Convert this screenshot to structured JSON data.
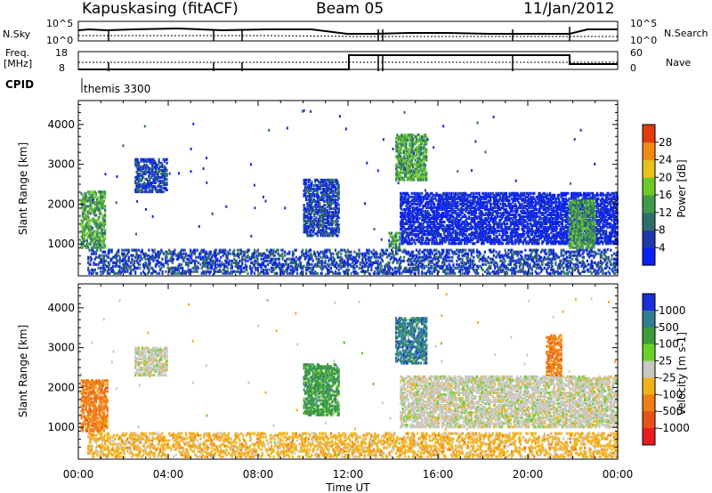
{
  "header": {
    "station": "Kapuskasing (fitACF)",
    "beam": "Beam 05",
    "date": "11/Jan/2012"
  },
  "strip_panels": {
    "nsky_label": "N.Sky",
    "nsky_ticks": [
      "10^5",
      "10^0"
    ],
    "nsearch_label": "N.Search",
    "nsearch_ticks": [
      "10^5",
      "10^0"
    ],
    "freq_label_line1": "Freq.",
    "freq_label_line2": "[MHz]",
    "freq_ticks": [
      "18",
      "8"
    ],
    "nave_label": "Nave",
    "nave_ticks": [
      "60",
      "0"
    ],
    "cpid_label": "CPID",
    "cpid_value": "themis 3300"
  },
  "chart_data": [
    {
      "type": "heatmap",
      "name": "power",
      "ylabel": "Slant Range [km]",
      "yticks": [
        "1000",
        "2000",
        "3000",
        "4000"
      ],
      "ylim": [
        200,
        4600
      ],
      "xlim_hours": [
        0,
        24
      ],
      "colorbar_label": "Power [dB]",
      "colorbar_ticks": [
        "4",
        "8",
        "12",
        "16",
        "20",
        "24",
        "28"
      ],
      "colorbar_colors": [
        "#0a22f5",
        "#1d3aa8",
        "#2f6f6a",
        "#3f9a49",
        "#6cc92a",
        "#e6c21c",
        "#f08a14",
        "#e43b0c"
      ],
      "regions": [
        {
          "t": [
            0.1,
            1.2
          ],
          "r": [
            900,
            2300
          ],
          "level": 16
        },
        {
          "t": [
            2.5,
            3.9
          ],
          "r": [
            2300,
            3150
          ],
          "level": 8
        },
        {
          "t": [
            10.0,
            11.6
          ],
          "r": [
            1200,
            2600
          ],
          "level": 8
        },
        {
          "t": [
            14.1,
            15.5
          ],
          "r": [
            2600,
            3750
          ],
          "level": 16
        },
        {
          "t": [
            13.8,
            14.3
          ],
          "r": [
            900,
            1300
          ],
          "level": 16
        },
        {
          "t": [
            14.3,
            24.0
          ],
          "r": [
            1000,
            2300
          ],
          "level": 4
        },
        {
          "t": [
            21.8,
            23.0
          ],
          "r": [
            900,
            2100
          ],
          "level": 16
        },
        {
          "t": [
            0.4,
            24.0
          ],
          "r": [
            250,
            880
          ],
          "level": 8
        }
      ]
    },
    {
      "type": "heatmap",
      "name": "velocity",
      "ylabel": "Slant Range [km]",
      "yticks": [
        "1000",
        "2000",
        "3000",
        "4000"
      ],
      "ylim": [
        200,
        4600
      ],
      "xlim_hours": [
        0,
        24
      ],
      "colorbar_label": "Velocity [m s-1]",
      "colorbar_ticks": [
        "1000",
        "500",
        "100",
        "25",
        "-25",
        "-100",
        "-500",
        "-1000"
      ],
      "colorbar_colors": [
        "#1a2fd6",
        "#2f7f8f",
        "#3d9a3d",
        "#6ad12a",
        "#c8c8c0",
        "#f2b21c",
        "#f07e14",
        "#e8501a",
        "#e81e1e"
      ],
      "regions": [
        {
          "t": [
            0.1,
            1.3
          ],
          "r": [
            900,
            2200
          ],
          "level": -100
        },
        {
          "t": [
            2.5,
            3.9
          ],
          "r": [
            2300,
            3000
          ],
          "level": 0
        },
        {
          "t": [
            10.0,
            11.6
          ],
          "r": [
            1300,
            2600
          ],
          "level": 100
        },
        {
          "t": [
            14.1,
            15.5
          ],
          "r": [
            2600,
            3750
          ],
          "level": 500
        },
        {
          "t": [
            14.3,
            24.0
          ],
          "r": [
            1000,
            2300
          ],
          "level": 0
        },
        {
          "t": [
            20.8,
            21.5
          ],
          "r": [
            2300,
            3300
          ],
          "level": -100
        },
        {
          "t": [
            0.4,
            24.0
          ],
          "r": [
            250,
            880
          ],
          "level": -25
        }
      ]
    }
  ],
  "x_axis": {
    "ticks": [
      "00:00",
      "04:00",
      "08:00",
      "12:00",
      "16:00",
      "20:00",
      "00:00"
    ],
    "label": "Time UT"
  }
}
